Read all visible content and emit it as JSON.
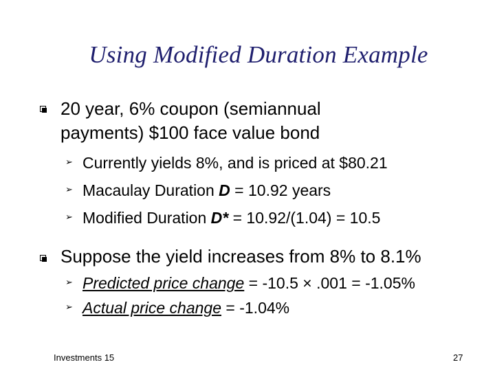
{
  "title": "Using Modified Duration Example",
  "point1": {
    "line1": "20 year, 6% coupon (semiannual",
    "line2": "payments) $100 face value bond"
  },
  "sub1": {
    "a": "Currently yields 8%, and is priced at $80.21",
    "b_pre": "Macaulay Duration ",
    "b_var": "D",
    "b_post": " = 10.92 years",
    "c_pre": "Modified Duration ",
    "c_var": "D*",
    "c_post": " = 10.92/(1.04) = 10.5"
  },
  "point2": {
    "text": "Suppose the yield increases from 8% to 8.1%"
  },
  "sub2": {
    "a_label": "Predicted price change",
    "a_rest": " = -10.5 × .001 = -1.05%",
    "b_label": "Actual price change",
    "b_rest": " = -1.04%"
  },
  "footer": {
    "left": "Investments 15",
    "right": "27"
  },
  "colors": {
    "title": "#1f1f6e"
  },
  "icons": {
    "level1": "checkbox-bullet-icon",
    "level2": "arrow-bullet-icon"
  }
}
